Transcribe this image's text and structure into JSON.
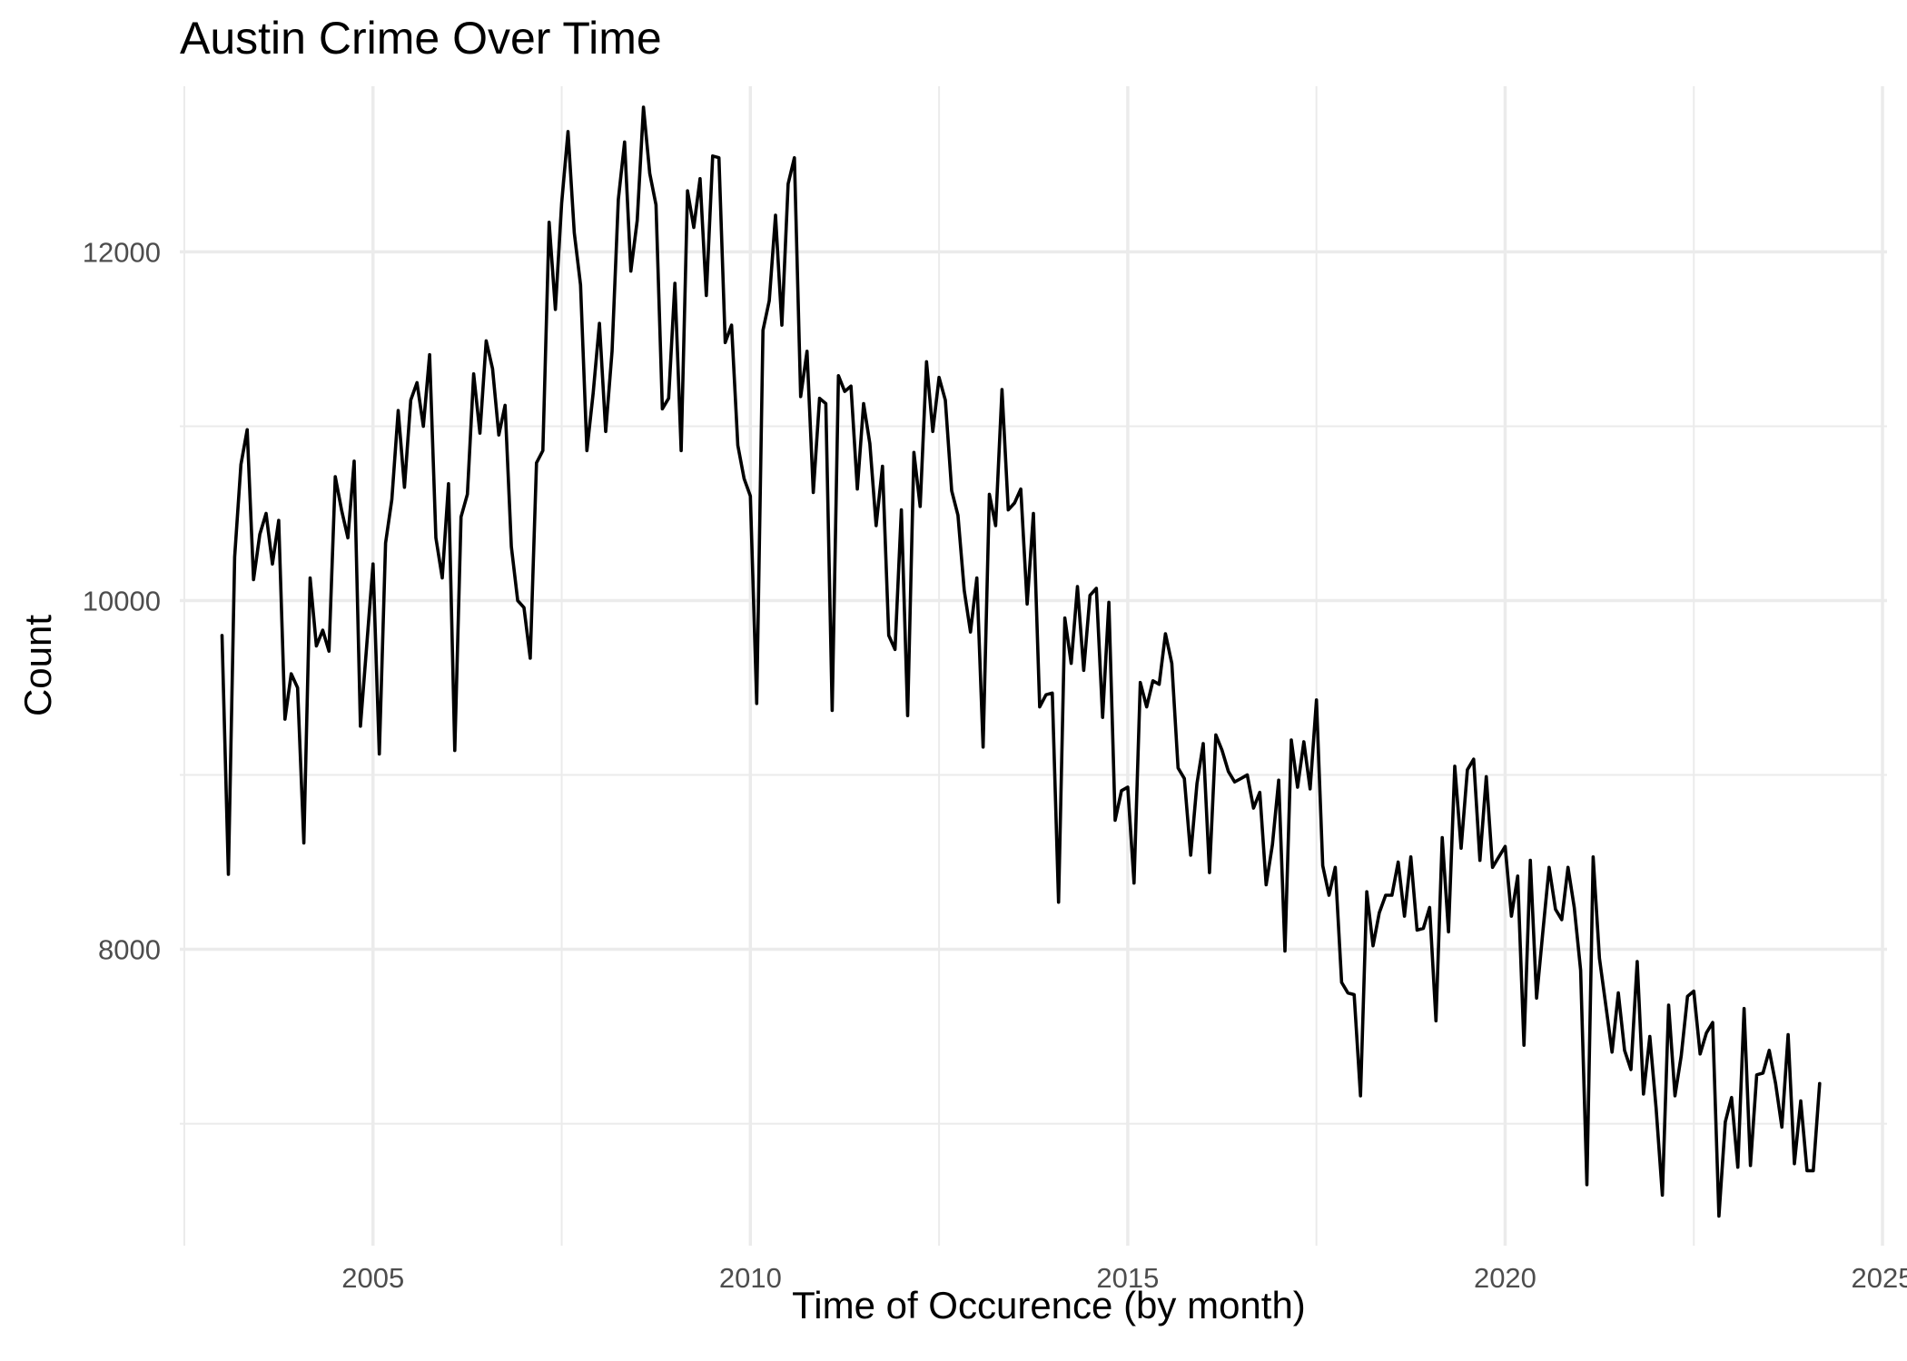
{
  "chart_data": {
    "type": "line",
    "title": "Austin Crime Over Time",
    "xlabel": "Time of Occurence (by month)",
    "ylabel": "Count",
    "xlim": [
      2002.44,
      2025.06
    ],
    "ylim": [
      6300,
      12950
    ],
    "x_ticks": [
      2005,
      2010,
      2015,
      2020,
      2025
    ],
    "x_tick_labels": [
      "2005",
      "2010",
      "2015",
      "2020",
      "2025"
    ],
    "y_ticks": [
      8000,
      10000,
      12000
    ],
    "y_tick_labels": [
      "8000",
      "10000",
      "12000"
    ],
    "grid": true,
    "legend": "none",
    "line_color": "#000000",
    "x_start": "2003-01",
    "x_interval": "month",
    "x_end": "2024-03",
    "values": [
      9800,
      8430,
      10250,
      10780,
      10980,
      10120,
      10380,
      10500,
      10210,
      10460,
      9320,
      9580,
      9500,
      8610,
      10130,
      9740,
      9830,
      9710,
      10710,
      10520,
      10360,
      10800,
      9280,
      9740,
      10210,
      9120,
      10330,
      10580,
      11090,
      10650,
      11150,
      11250,
      11000,
      11410,
      10360,
      10130,
      10670,
      9140,
      10480,
      10610,
      11300,
      10960,
      11490,
      11330,
      10950,
      11120,
      10310,
      10000,
      9960,
      9670,
      10790,
      10860,
      12170,
      11670,
      12280,
      12690,
      12110,
      11810,
      10860,
      11190,
      11590,
      10970,
      11430,
      12300,
      12630,
      11890,
      12180,
      12830,
      12450,
      12270,
      11100,
      11160,
      11820,
      10860,
      12350,
      12140,
      12420,
      11750,
      12550,
      12540,
      11480,
      11580,
      10890,
      10700,
      10600,
      9410,
      11550,
      11720,
      12210,
      11580,
      12390,
      12540,
      11170,
      11430,
      10620,
      11160,
      11130,
      9370,
      11290,
      11200,
      11230,
      10640,
      11130,
      10900,
      10430,
      10770,
      9800,
      9720,
      10520,
      9340,
      10850,
      10540,
      11370,
      10970,
      11280,
      11150,
      10630,
      10490,
      10060,
      9820,
      10130,
      9160,
      10610,
      10430,
      11210,
      10520,
      10560,
      10640,
      9980,
      10500,
      9390,
      9460,
      9470,
      8270,
      9900,
      9640,
      10080,
      9600,
      10030,
      10070,
      9330,
      9990,
      8740,
      8910,
      8930,
      8380,
      9530,
      9390,
      9540,
      9520,
      9810,
      9640,
      9040,
      8980,
      8540,
      8950,
      9180,
      8440,
      9230,
      9140,
      9020,
      8960,
      8980,
      9000,
      8810,
      8900,
      8370,
      8600,
      8970,
      7990,
      9200,
      8930,
      9190,
      8920,
      9430,
      8480,
      8310,
      8470,
      7810,
      7750,
      7740,
      7160,
      8330,
      8020,
      8210,
      8310,
      8310,
      8500,
      8190,
      8530,
      8110,
      8120,
      8240,
      7590,
      8640,
      8100,
      9050,
      8580,
      9030,
      9090,
      8510,
      8990,
      8470,
      8530,
      8590,
      8190,
      8420,
      7450,
      8510,
      7720,
      8100,
      8470,
      8230,
      8170,
      8470,
      8240,
      7880,
      6650,
      8530,
      7950,
      7680,
      7410,
      7750,
      7420,
      7310,
      7930,
      7170,
      7500,
      7090,
      6590,
      7680,
      7160,
      7390,
      7730,
      7760,
      7400,
      7520,
      7580,
      6470,
      7010,
      7150,
      6750,
      7660,
      6760,
      7280,
      7290,
      7420,
      7230,
      6980,
      7510,
      6770,
      7130,
      6730,
      6730,
      7230
    ]
  }
}
